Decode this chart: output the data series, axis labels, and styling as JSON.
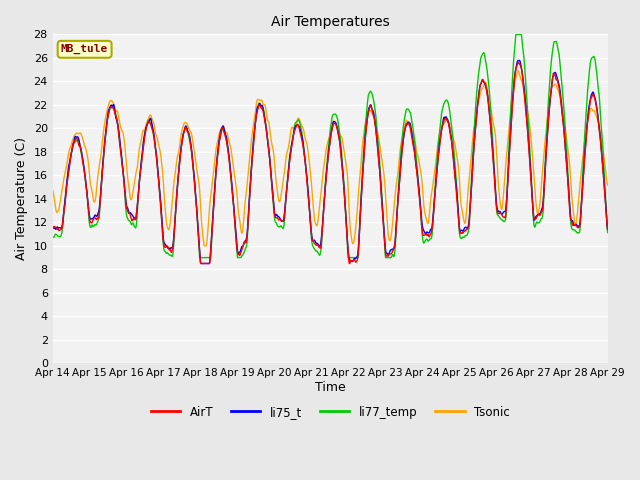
{
  "title": "Air Temperatures",
  "xlabel": "Time",
  "ylabel": "Air Temperature (C)",
  "ylim": [
    0,
    28
  ],
  "yticks": [
    0,
    2,
    4,
    6,
    8,
    10,
    12,
    14,
    16,
    18,
    20,
    22,
    24,
    26,
    28
  ],
  "x_labels": [
    "Apr 14",
    "Apr 15",
    "Apr 16",
    "Apr 17",
    "Apr 18",
    "Apr 19",
    "Apr 20",
    "Apr 21",
    "Apr 22",
    "Apr 23",
    "Apr 24",
    "Apr 25",
    "Apr 26",
    "Apr 27",
    "Apr 28",
    "Apr 29"
  ],
  "annotation_text": "MB_tule",
  "annotation_color": "#8B0000",
  "annotation_bg": "#FFFFCC",
  "annotation_edge": "#AAAA00",
  "line_colors": {
    "AirT": "#FF0000",
    "li75_t": "#0000FF",
    "li77_temp": "#00CC00",
    "Tsonic": "#FFA500"
  },
  "bg_color": "#E8E8E8",
  "plot_bg": "#E8E8E8",
  "inner_bg": "#F2F2F2",
  "grid_color": "#FFFFFF",
  "num_days": 15,
  "points_per_day": 96,
  "figsize": [
    6.4,
    4.8
  ],
  "dpi": 100
}
